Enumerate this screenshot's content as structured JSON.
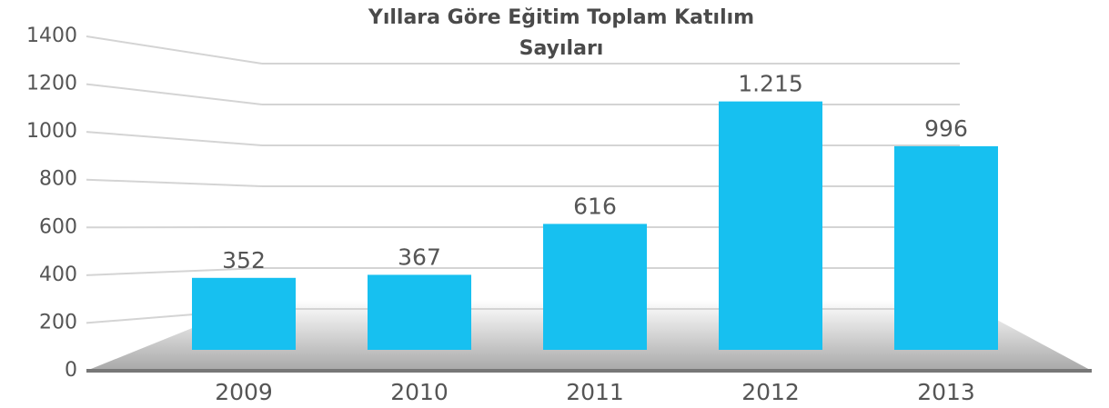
{
  "chart_data": {
    "type": "bar",
    "title": [
      "Yıllara Göre Eğitim Toplam Katılım",
      "Sayıları"
    ],
    "categories": [
      "2009",
      "2010",
      "2011",
      "2012",
      "2013"
    ],
    "values": [
      352,
      367,
      616,
      1215,
      996
    ],
    "value_labels": [
      "352",
      "367",
      "616",
      "1.215",
      "996"
    ],
    "color": "#17c0f0",
    "ylim": [
      0,
      1400
    ],
    "yticks": [
      0,
      200,
      400,
      600,
      800,
      1000,
      1200,
      1400
    ],
    "grid": true
  }
}
